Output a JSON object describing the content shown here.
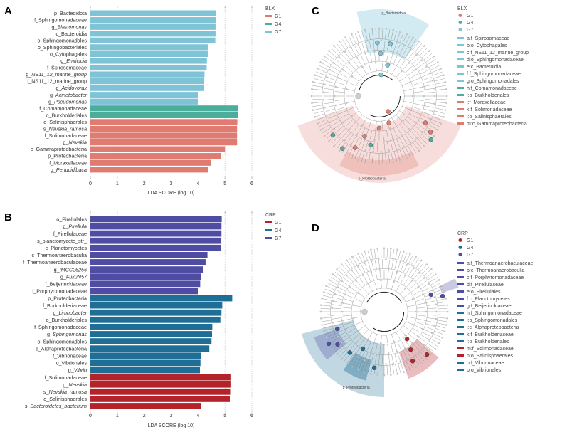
{
  "chart_data": [
    {
      "panel": "A",
      "type": "bar",
      "orientation": "horizontal",
      "xlabel": "LDA SCORE (log 10)",
      "xlim": [
        0,
        6
      ],
      "xticks": [
        "0",
        "1",
        "2",
        "3",
        "4",
        "5",
        "6"
      ],
      "grid": true,
      "legend": {
        "title": "BLX",
        "placement": "top-right",
        "entries": [
          "G1",
          "G4",
          "G7"
        ]
      },
      "colors": {
        "G1": "#e07b72",
        "G4": "#4aae9b",
        "G7": "#7ec4d6"
      },
      "bars": [
        {
          "label": "p_Bacteoidota",
          "italic": "",
          "group": "G7",
          "value": 4.66
        },
        {
          "label": "f_Sphingomonadaceae",
          "italic": "",
          "group": "G7",
          "value": 4.66
        },
        {
          "label": "g_",
          "italic": "Blastomonas",
          "group": "G7",
          "value": 4.65
        },
        {
          "label": "c_Bacteroidia",
          "italic": "",
          "group": "G7",
          "value": 4.65
        },
        {
          "label": "o_Sphingomonadales",
          "italic": "",
          "group": "G7",
          "value": 4.64
        },
        {
          "label": "o_Sphingobacteriales",
          "italic": "",
          "group": "G7",
          "value": 4.36
        },
        {
          "label": "o_Cytophagales",
          "italic": "",
          "group": "G7",
          "value": 4.36
        },
        {
          "label": "g_",
          "italic": "Emticicia",
          "group": "G7",
          "value": 4.33
        },
        {
          "label": "f_Spirosomaceae",
          "italic": "",
          "group": "G7",
          "value": 4.32
        },
        {
          "label": "g_",
          "italic": "NS11_12_marine_group",
          "group": "G7",
          "value": 4.24
        },
        {
          "label": "f_NS11_12_marine_group",
          "italic": "",
          "group": "G7",
          "value": 4.23
        },
        {
          "label": "g_",
          "italic": "Acidovorax",
          "group": "G7",
          "value": 4.23
        },
        {
          "label": "g_",
          "italic": "Acinetobacter",
          "group": "G7",
          "value": 4.01
        },
        {
          "label": "g_",
          "italic": "Pseudomonas",
          "group": "G7",
          "value": 4.01
        },
        {
          "label": "f_Comamonadaceae",
          "italic": "",
          "group": "G4",
          "value": 5.49
        },
        {
          "label": "o_Burkholderiales",
          "italic": "",
          "group": "G4",
          "value": 5.48
        },
        {
          "label": "o_Salinisphaerales",
          "italic": "",
          "group": "G1",
          "value": 5.46
        },
        {
          "label": "s_",
          "italic": "Nevskia_ramosa",
          "group": "G1",
          "value": 5.45
        },
        {
          "label": "f_Solimonadaceae",
          "italic": "",
          "group": "G1",
          "value": 5.45
        },
        {
          "label": "g_",
          "italic": "Nevskia",
          "group": "G1",
          "value": 5.45
        },
        {
          "label": "c_Gammaproteobacteria",
          "italic": "",
          "group": "G1",
          "value": 5.0
        },
        {
          "label": "p_Proteobacteria",
          "italic": "",
          "group": "G1",
          "value": 4.84
        },
        {
          "label": "f_Moraxellaceae",
          "italic": "",
          "group": "G1",
          "value": 4.48
        },
        {
          "label": "g_",
          "italic": "Perlucidibaca",
          "group": "G1",
          "value": 4.38
        }
      ]
    },
    {
      "panel": "B",
      "type": "bar",
      "orientation": "horizontal",
      "xlabel": "LDA SCORE (log 10)",
      "xlim": [
        0,
        6
      ],
      "xticks": [
        "0",
        "1",
        "2",
        "3",
        "4",
        "5",
        "6"
      ],
      "grid": true,
      "legend": {
        "title": "CRP",
        "placement": "top-right",
        "entries": [
          "G1",
          "G4",
          "G7"
        ]
      },
      "colors": {
        "G1": "#b5232a",
        "G4": "#1f6e96",
        "G7": "#4e4da3"
      },
      "bars": [
        {
          "label": "o_Pirellulales",
          "italic": "",
          "group": "G7",
          "value": 4.88
        },
        {
          "label": "g_",
          "italic": "Pirellula",
          "group": "G7",
          "value": 4.87
        },
        {
          "label": "f_Pirellulaceae",
          "italic": "",
          "group": "G7",
          "value": 4.87
        },
        {
          "label": "s_planctomycete_str_",
          "italic": "",
          "group": "G7",
          "value": 4.86
        },
        {
          "label": "c_Planctomycetes",
          "italic": "",
          "group": "G7",
          "value": 4.84
        },
        {
          "label": "c_Thermoanaerobaculia",
          "italic": "",
          "group": "G7",
          "value": 4.35
        },
        {
          "label": "f_Thermoanaerobaculaceae",
          "italic": "",
          "group": "G7",
          "value": 4.28
        },
        {
          "label": "g_",
          "italic": "IMCC26256",
          "group": "G7",
          "value": 4.2
        },
        {
          "label": "g_",
          "italic": "FukuN57",
          "group": "G7",
          "value": 4.1
        },
        {
          "label": "f_Beijerinckiaceae",
          "italic": "",
          "group": "G7",
          "value": 4.08
        },
        {
          "label": "f_Porphyromonadaceae",
          "italic": "",
          "group": "G7",
          "value": 4.01
        },
        {
          "label": "p_Proteobacteria",
          "italic": "",
          "group": "G4",
          "value": 5.27
        },
        {
          "label": "f_Burkholderiaceae",
          "italic": "",
          "group": "G4",
          "value": 4.9
        },
        {
          "label": "g_",
          "italic": "Limnobacter",
          "group": "G4",
          "value": 4.87
        },
        {
          "label": "o_Burkholderiales",
          "italic": "",
          "group": "G4",
          "value": 4.83
        },
        {
          "label": "f_Sphingomonadaceae",
          "italic": "",
          "group": "G4",
          "value": 4.53
        },
        {
          "label": "g_",
          "italic": "Sphingomonas",
          "group": "G4",
          "value": 4.52
        },
        {
          "label": "o_Sphingomonadales",
          "italic": "",
          "group": "G4",
          "value": 4.5
        },
        {
          "label": "c_Alphaproteobacteria",
          "italic": "",
          "group": "G4",
          "value": 4.42
        },
        {
          "label": "f_Vibrionaceae",
          "italic": "",
          "group": "G4",
          "value": 4.11
        },
        {
          "label": "o_Vibrionales",
          "italic": "",
          "group": "G4",
          "value": 4.09
        },
        {
          "label": "g_",
          "italic": "Vibrio",
          "group": "G4",
          "value": 4.07
        },
        {
          "label": "f_Solimonadaceae",
          "italic": "",
          "group": "G1",
          "value": 5.23
        },
        {
          "label": "g_",
          "italic": "Nevskia",
          "group": "G1",
          "value": 5.23
        },
        {
          "label": "s_",
          "italic": "Nevskia_ramosa",
          "group": "G1",
          "value": 5.22
        },
        {
          "label": "o_Salinisphaerales",
          "italic": "",
          "group": "G1",
          "value": 5.2
        },
        {
          "label": "s_",
          "italic": "Bacteroidetes_bacterium",
          "group": "G1",
          "value": 4.1
        }
      ]
    }
  ],
  "cladograms": [
    {
      "panel": "C",
      "legend_title": "BLX",
      "groups": [
        {
          "name": "G1",
          "color": "#e07b72"
        },
        {
          "name": "G4",
          "color": "#4aae9b"
        },
        {
          "name": "G7",
          "color": "#7ec4d6"
        }
      ],
      "wedge_labels": {
        "top": "p_Bacteroidota",
        "bottom": "p_Proteobacteria"
      },
      "clades": [
        {
          "key": "a:f_Spirosomaceae",
          "group": "G7"
        },
        {
          "key": "b:o_Cytophagales",
          "group": "G7"
        },
        {
          "key": "c:f_NS11_12_marine_group",
          "group": "G7"
        },
        {
          "key": "d:o_Sphingomonadaceae",
          "group": "G7"
        },
        {
          "key": "e:c_Bacteroidia",
          "group": "G7"
        },
        {
          "key": "f:f_Sphingomonadaceae",
          "group": "G7"
        },
        {
          "key": "g:o_Sphingomonadales",
          "group": "G7"
        },
        {
          "key": "h:f_Comamonadaceae",
          "group": "G4"
        },
        {
          "key": "i:o_Burkholderiales",
          "group": "G4"
        },
        {
          "key": "j:f_Moraxellaceae",
          "group": "G1"
        },
        {
          "key": "k:f_Solimonadaceae",
          "group": "G1"
        },
        {
          "key": "l:o_Salinisphaerales",
          "group": "G1"
        },
        {
          "key": "m:c_Gammaproteobacteria",
          "group": "G1"
        }
      ]
    },
    {
      "panel": "D",
      "legend_title": "CRP",
      "groups": [
        {
          "name": "G1",
          "color": "#b5232a"
        },
        {
          "name": "G4",
          "color": "#1f6e96"
        },
        {
          "name": "G7",
          "color": "#4e4da3"
        }
      ],
      "wedge_labels": {
        "bottom": "p_Proteobacteria"
      },
      "clades": [
        {
          "key": "a:f_Thermoanaerobaculaceae",
          "group": "G7"
        },
        {
          "key": "b:c_Thermoanaerobaculia",
          "group": "G7"
        },
        {
          "key": "c:f_Porphyromonadaceae",
          "group": "G7"
        },
        {
          "key": "d:f_Pirellulaceae",
          "group": "G7"
        },
        {
          "key": "e:o_Pirellulales",
          "group": "G7"
        },
        {
          "key": "f:c_Planctomycetes",
          "group": "G7"
        },
        {
          "key": "g:f_Beijerinckiaceae",
          "group": "G7"
        },
        {
          "key": "h:f_Sphingomonadaceae",
          "group": "G4"
        },
        {
          "key": "i:o_Sphingomonadales",
          "group": "G4"
        },
        {
          "key": "j:c_Alphaproteobacteria",
          "group": "G4"
        },
        {
          "key": "k:f_Burkholderiaceae",
          "group": "G4"
        },
        {
          "key": "l:o_Burkholderiales",
          "group": "G4"
        },
        {
          "key": "m:f_Solimonadaceae",
          "group": "G1"
        },
        {
          "key": "n:o_Salinisphaerales",
          "group": "G1"
        },
        {
          "key": "o:f_Vibrionaceae",
          "group": "G4"
        },
        {
          "key": "p:o_Vibrionales",
          "group": "G4"
        }
      ]
    }
  ],
  "panel_letters": [
    "A",
    "B",
    "C",
    "D"
  ]
}
